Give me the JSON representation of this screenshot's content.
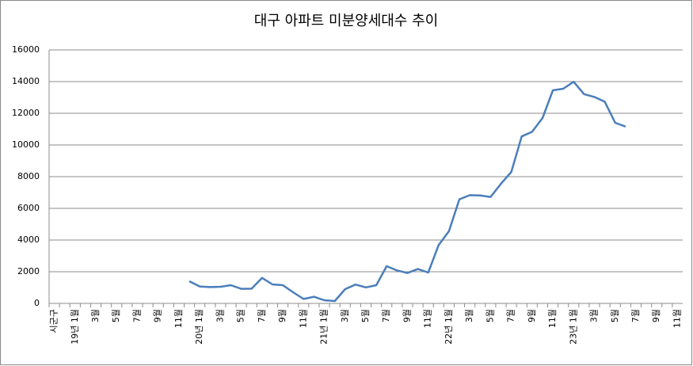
{
  "chart_data": {
    "type": "line",
    "title": "대구 아파트 미분양세대수 추이",
    "categories": [
      "시군구",
      null,
      "19년 1월",
      null,
      "3월",
      null,
      "5월",
      null,
      "7월",
      null,
      "9월",
      null,
      "11월",
      null,
      "20년 1월",
      null,
      "3월",
      null,
      "5월",
      null,
      "7월",
      null,
      "9월",
      null,
      "11월",
      null,
      "21년 1월",
      null,
      "3월",
      null,
      "5월",
      null,
      "7월",
      null,
      "9월",
      null,
      "11월",
      null,
      "22년 1월",
      null,
      "3월",
      null,
      "5월",
      null,
      "7월",
      null,
      "9월",
      null,
      "11월",
      null,
      "23년 1월",
      null,
      "3월",
      null,
      "5월",
      null,
      "7월",
      null,
      "9월",
      null,
      "11월"
    ],
    "values": [
      null,
      null,
      null,
      null,
      null,
      null,
      null,
      null,
      null,
      null,
      null,
      null,
      null,
      1400,
      1070,
      1030,
      1050,
      1150,
      920,
      930,
      1610,
      1200,
      1150,
      700,
      280,
      420,
      200,
      150,
      900,
      1190,
      1010,
      1150,
      2350,
      2080,
      1920,
      2170,
      1950,
      3680,
      4560,
      6570,
      6830,
      6810,
      6720,
      7550,
      8300,
      10540,
      10830,
      11700,
      13450,
      13550,
      13990,
      13210,
      13030,
      12730,
      11400,
      11160,
      null,
      null,
      null,
      null,
      null
    ],
    "color": "#4a7ebb",
    "ylim": [
      0,
      16000
    ],
    "yticks": [
      0,
      2000,
      4000,
      6000,
      8000,
      10000,
      12000,
      14000,
      16000
    ],
    "grid": true
  }
}
